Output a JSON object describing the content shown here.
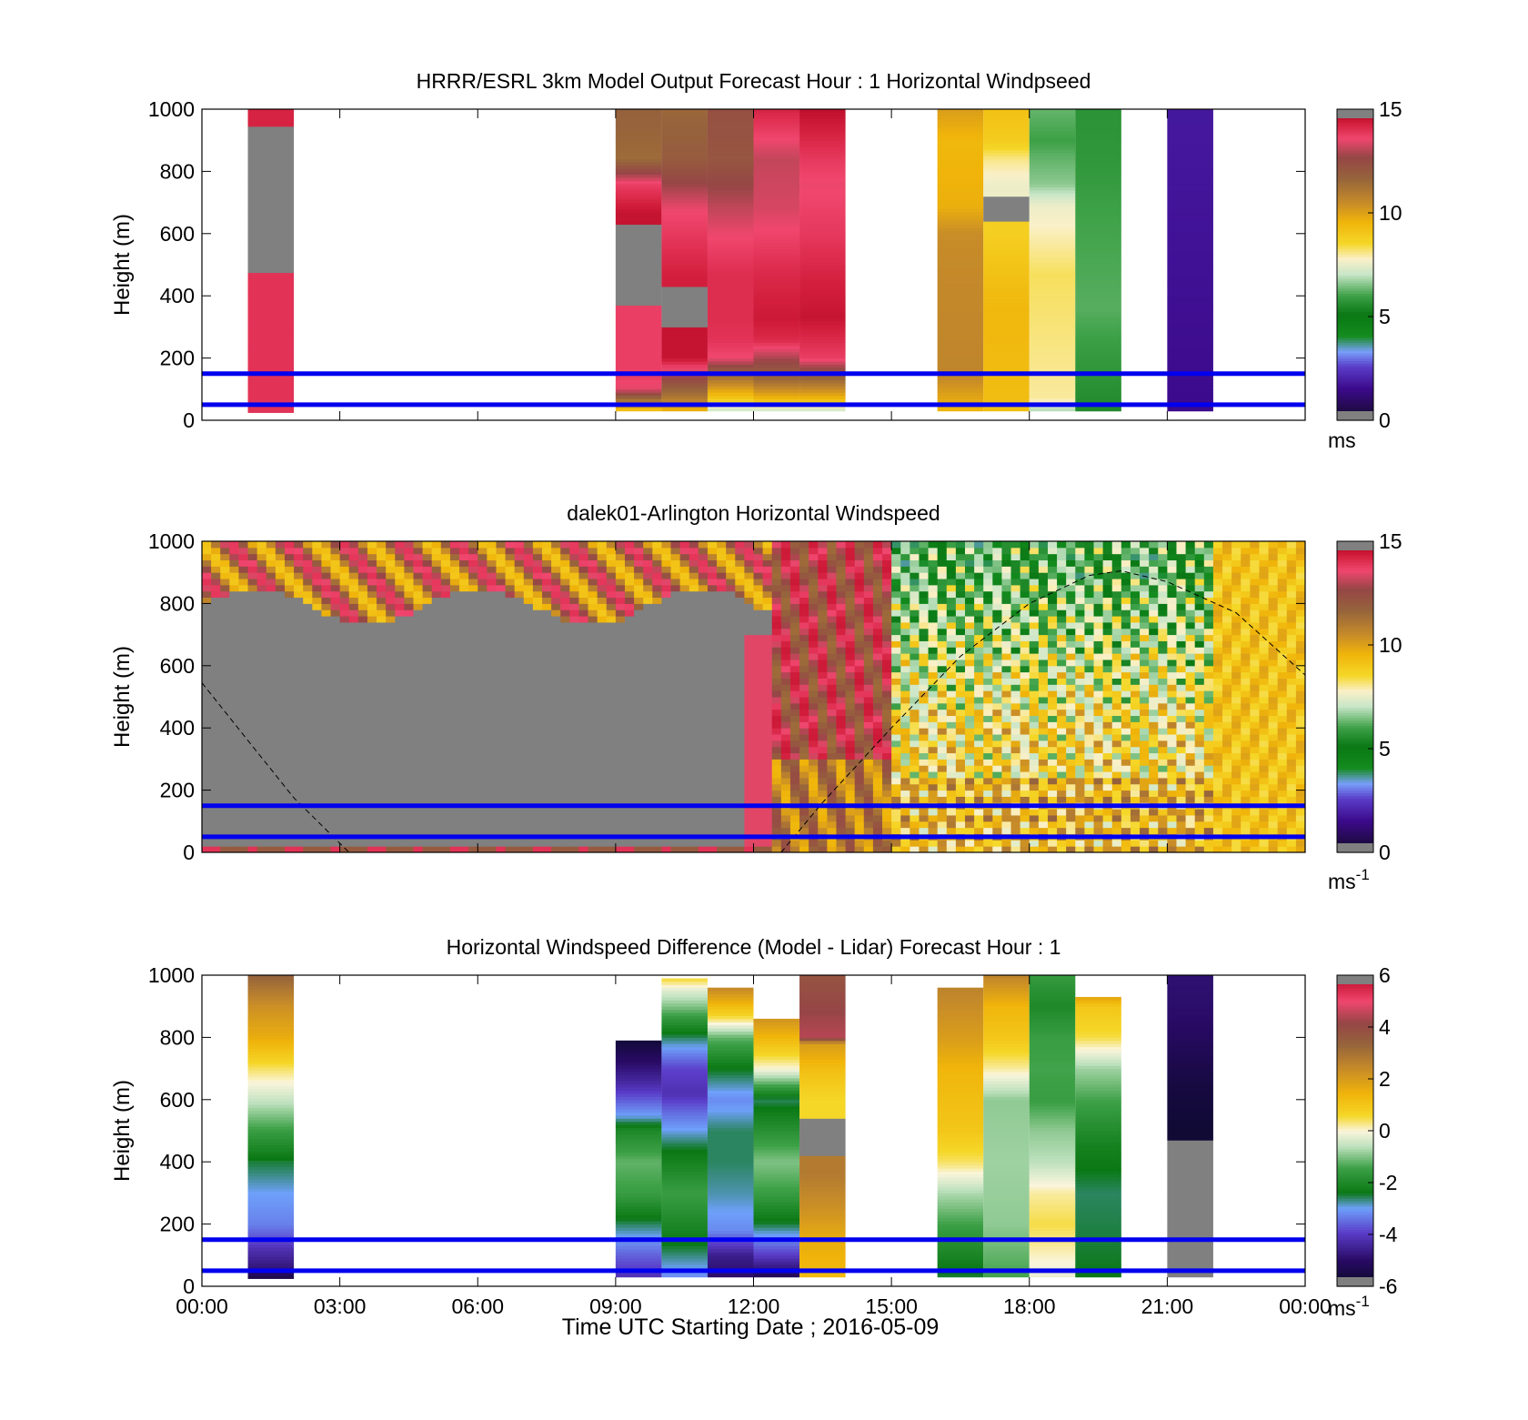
{
  "figure": {
    "xlabel": "Time UTC  Starting Date ; 2016-05-09",
    "x_ticks": [
      "00:00",
      "03:00",
      "06:00",
      "09:00",
      "12:00",
      "15:00",
      "18:00",
      "21:00",
      "00:00"
    ]
  },
  "chart_data": [
    {
      "type": "heatmap",
      "title": "HRRR/ESRL 3km Model Output   Forecast Hour : 1 Horizontal Windpseed",
      "xlabel": "",
      "ylabel": "Height (m)",
      "xlim": [
        0,
        24
      ],
      "ylim": [
        0,
        1000
      ],
      "y_ticks": [
        "0",
        "200",
        "400",
        "600",
        "800",
        "1000"
      ],
      "colorbar": {
        "ticks": [
          "0",
          "5",
          "10",
          "15"
        ],
        "range": [
          0,
          15
        ],
        "unit": "ms",
        "unit_sup": "",
        "colormap": "speed"
      },
      "reference_lines_height_m": [
        50,
        150
      ],
      "reference_line_color": "#0000ee",
      "missing_color": "#808080",
      "columns": [
        {
          "t0": 1.0,
          "t1": 2.0,
          "profile": [
            [
              25,
              14
            ],
            [
              45,
              14
            ],
            [
              900,
              null
            ],
            [
              1000,
              14.3
            ]
          ]
        },
        {
          "t0": 9.0,
          "t1": 10.0,
          "profile": [
            [
              30,
              9
            ],
            [
              70,
              11.5
            ],
            [
              100,
              13.5
            ],
            [
              140,
              13.8
            ],
            [
              600,
              null
            ],
            [
              670,
              14.6
            ],
            [
              760,
              13.8
            ],
            [
              840,
              11.5
            ],
            [
              1000,
              11.8
            ]
          ]
        },
        {
          "t0": 10.0,
          "t1": 11.0,
          "profile": [
            [
              30,
              9.5
            ],
            [
              70,
              11
            ],
            [
              130,
              12.5
            ],
            [
              200,
              14.6
            ],
            [
              400,
              null
            ],
            [
              460,
              14.4
            ],
            [
              600,
              13.9
            ],
            [
              680,
              13.6
            ],
            [
              840,
              12
            ],
            [
              1000,
              11.6
            ]
          ]
        },
        {
          "t0": 11.0,
          "t1": 12.0,
          "profile": [
            [
              30,
              7
            ],
            [
              70,
              9
            ],
            [
              130,
              11
            ],
            [
              200,
              13.6
            ],
            [
              260,
              14
            ],
            [
              330,
              14.1
            ],
            [
              470,
              14.1
            ],
            [
              600,
              13.6
            ],
            [
              680,
              13.2
            ],
            [
              840,
              12.2
            ],
            [
              1000,
              12.4
            ]
          ]
        },
        {
          "t0": 12.0,
          "t1": 13.0,
          "profile": [
            [
              30,
              7
            ],
            [
              70,
              9.5
            ],
            [
              130,
              11.5
            ],
            [
              260,
              14.2
            ],
            [
              330,
              14.5
            ],
            [
              470,
              14.2
            ],
            [
              680,
              13.4
            ],
            [
              840,
              13.2
            ],
            [
              1000,
              14.3
            ]
          ]
        },
        {
          "t0": 13.0,
          "t1": 14.0,
          "profile": [
            [
              30,
              7
            ],
            [
              70,
              9.5
            ],
            [
              130,
              11.5
            ],
            [
              200,
              13.8
            ],
            [
              330,
              14.6
            ],
            [
              470,
              14.3
            ],
            [
              600,
              13.9
            ],
            [
              760,
              13.6
            ],
            [
              840,
              13.9
            ],
            [
              1000,
              14.7
            ]
          ]
        },
        {
          "t0": 16.0,
          "t1": 17.0,
          "profile": [
            [
              30,
              9.5
            ],
            [
              150,
              10.7
            ],
            [
              460,
              10.6
            ],
            [
              600,
              10.5
            ],
            [
              690,
              9.7
            ],
            [
              900,
              9.5
            ],
            [
              1000,
              10.1
            ]
          ]
        },
        {
          "t0": 17.0,
          "t1": 18.0,
          "profile": [
            [
              30,
              9.3
            ],
            [
              360,
              9.5
            ],
            [
              470,
              9.2
            ],
            [
              600,
              8.8
            ],
            [
              690,
              null
            ],
            [
              760,
              7.6
            ],
            [
              840,
              8.1
            ],
            [
              900,
              8.9
            ],
            [
              1000,
              9.2
            ]
          ]
        },
        {
          "t0": 18.0,
          "t1": 19.0,
          "profile": [
            [
              30,
              6.8
            ],
            [
              70,
              8.0
            ],
            [
              470,
              8.3
            ],
            [
              690,
              7.6
            ],
            [
              760,
              6.6
            ],
            [
              840,
              6.3
            ],
            [
              900,
              6.0
            ],
            [
              1000,
              6.3
            ]
          ]
        },
        {
          "t0": 19.0,
          "t1": 20.0,
          "profile": [
            [
              30,
              5.5
            ],
            [
              360,
              6.2
            ],
            [
              690,
              6.0
            ],
            [
              840,
              5.8
            ],
            [
              1000,
              5.7
            ]
          ]
        },
        {
          "t0": 21.0,
          "t1": 22.0,
          "profile": [
            [
              30,
              1.5
            ],
            [
              1000,
              1.8
            ]
          ]
        }
      ]
    },
    {
      "type": "heatmap",
      "title": "dalek01-Arlington  Horizontal Windspeed",
      "xlabel": "",
      "ylabel": "Height (m)",
      "xlim": [
        0,
        24
      ],
      "ylim": [
        0,
        1000
      ],
      "y_ticks": [
        "0",
        "200",
        "400",
        "600",
        "800",
        "1000"
      ],
      "colorbar": {
        "ticks": [
          "0",
          "5",
          "10",
          "15"
        ],
        "range": [
          0,
          15
        ],
        "unit": "ms",
        "unit_sup": "-1",
        "colormap": "speed"
      },
      "reference_lines_height_m": [
        50,
        150
      ],
      "reference_line_color": "#0000ee",
      "missing_color": "#808080",
      "dashed_curve_color": "#000000",
      "dashed_curve_height_m": [
        [
          0.0,
          545
        ],
        [
          1.0,
          360
        ],
        [
          2.0,
          175
        ],
        [
          3.2,
          0
        ],
        [
          12.6,
          0
        ],
        [
          13.5,
          160
        ],
        [
          15.0,
          400
        ],
        [
          16.5,
          630
        ],
        [
          18.0,
          800
        ],
        [
          19.3,
          890
        ],
        [
          20.0,
          905
        ],
        [
          21.0,
          870
        ],
        [
          22.5,
          770
        ],
        [
          24.0,
          570
        ]
      ],
      "data_region": [
        {
          "t0": 0.0,
          "t1": 12.4,
          "speed": "mostly missing below aerosol top; 10-14 near 900-1000 m and near surface"
        },
        {
          "t0": 12.4,
          "t1": 15.0,
          "speed": "11-14 through column, lower 300 m ~11"
        },
        {
          "t0": 15.0,
          "t1": 24.0,
          "speed": "8-10 low levels, 5-7 aloft"
        }
      ]
    },
    {
      "type": "heatmap",
      "title": "Horizontal Windspeed Difference (Model - Lidar) Forecast Hour : 1",
      "xlabel": "Time UTC  Starting Date ; 2016-05-09",
      "ylabel": "Height (m)",
      "xlim": [
        0,
        24
      ],
      "ylim": [
        0,
        1000
      ],
      "y_ticks": [
        "0",
        "200",
        "400",
        "600",
        "800",
        "1000"
      ],
      "colorbar": {
        "ticks": [
          "-6",
          "-4",
          "-2",
          "0",
          "2",
          "4",
          "6"
        ],
        "range": [
          -6,
          6
        ],
        "unit": "ms",
        "unit_sup": "-1",
        "colormap": "diff"
      },
      "reference_lines_height_m": [
        50,
        150
      ],
      "reference_line_color": "#0000ee",
      "missing_color": "#808080",
      "columns": [
        {
          "t0": 1.0,
          "t1": 2.0,
          "profile": [
            [
              25,
              -5.5
            ],
            [
              60,
              -4.8
            ],
            [
              120,
              -4.2
            ],
            [
              150,
              -3.8
            ],
            [
              200,
              -3.3
            ],
            [
              300,
              -3.0
            ],
            [
              400,
              -2.5
            ],
            [
              500,
              -1.5
            ],
            [
              600,
              -0.5
            ],
            [
              700,
              0.4
            ],
            [
              800,
              1.6
            ],
            [
              900,
              2.3
            ],
            [
              1000,
              3.4
            ]
          ]
        },
        {
          "t0": 9.0,
          "t1": 10.0,
          "profile": [
            [
              30,
              -4.2
            ],
            [
              100,
              -3.6
            ],
            [
              200,
              -2.6
            ],
            [
              300,
              -1.5
            ],
            [
              400,
              -1.2
            ],
            [
              500,
              -2.0
            ],
            [
              550,
              -3.0
            ],
            [
              650,
              -4.3
            ],
            [
              750,
              -5.3
            ],
            [
              790,
              -5.7
            ]
          ]
        },
        {
          "t0": 10.0,
          "t1": 11.0,
          "profile": [
            [
              30,
              -3.2
            ],
            [
              150,
              -2.3
            ],
            [
              300,
              -1.5
            ],
            [
              450,
              -2.5
            ],
            [
              560,
              -3.5
            ],
            [
              620,
              -4.2
            ],
            [
              700,
              -3.9
            ],
            [
              800,
              -2.6
            ],
            [
              900,
              -1.0
            ],
            [
              950,
              -0.3
            ],
            [
              990,
              0.6
            ]
          ]
        },
        {
          "t0": 11.0,
          "t1": 12.0,
          "profile": [
            [
              30,
              -5.0
            ],
            [
              100,
              -4.6
            ],
            [
              180,
              -3.2
            ],
            [
              300,
              -2.8
            ],
            [
              400,
              -2.6
            ],
            [
              500,
              -2.6
            ],
            [
              600,
              -3.2
            ],
            [
              700,
              -2.4
            ],
            [
              800,
              -1.2
            ],
            [
              860,
              0.4
            ],
            [
              960,
              2.5
            ]
          ]
        },
        {
          "t0": 12.0,
          "t1": 13.0,
          "profile": [
            [
              30,
              -5.3
            ],
            [
              100,
              -4.0
            ],
            [
              200,
              -2.5
            ],
            [
              300,
              -1.5
            ],
            [
              400,
              -1.0
            ],
            [
              500,
              -1.8
            ],
            [
              600,
              -2.6
            ],
            [
              700,
              0.0
            ],
            [
              860,
              2.2
            ]
          ]
        },
        {
          "t0": 13.0,
          "t1": 14.0,
          "profile": [
            [
              30,
              1.3
            ],
            [
              150,
              1.6
            ],
            [
              250,
              2.3
            ],
            [
              360,
              2.8
            ],
            [
              490,
              null
            ],
            [
              600,
              0.6
            ],
            [
              700,
              1.2
            ],
            [
              780,
              2.0
            ],
            [
              800,
              4.5
            ],
            [
              1000,
              3.8
            ]
          ]
        },
        {
          "t0": 16.0,
          "t1": 17.0,
          "profile": [
            [
              30,
              -2.5
            ],
            [
              150,
              -1.8
            ],
            [
              300,
              -0.7
            ],
            [
              400,
              0.4
            ],
            [
              500,
              1.0
            ],
            [
              700,
              1.4
            ],
            [
              800,
              2.0
            ],
            [
              900,
              2.4
            ],
            [
              960,
              2.6
            ]
          ]
        },
        {
          "t0": 17.0,
          "t1": 18.0,
          "profile": [
            [
              30,
              -1.4
            ],
            [
              200,
              -0.9
            ],
            [
              400,
              -0.8
            ],
            [
              600,
              -0.9
            ],
            [
              700,
              0.2
            ],
            [
              800,
              1.0
            ],
            [
              900,
              1.4
            ],
            [
              1000,
              2.6
            ]
          ]
        },
        {
          "t0": 18.0,
          "t1": 19.0,
          "profile": [
            [
              30,
              -0.2
            ],
            [
              200,
              0.5
            ],
            [
              300,
              0.2
            ],
            [
              400,
              -0.6
            ],
            [
              500,
              -0.9
            ],
            [
              600,
              -1.5
            ],
            [
              700,
              -1.4
            ],
            [
              800,
              -1.5
            ],
            [
              900,
              -2.0
            ],
            [
              1000,
              -1.6
            ]
          ]
        },
        {
          "t0": 19.0,
          "t1": 20.0,
          "profile": [
            [
              30,
              -2.4
            ],
            [
              150,
              -2.5
            ],
            [
              300,
              -2.6
            ],
            [
              450,
              -2.2
            ],
            [
              600,
              -1.4
            ],
            [
              700,
              -0.8
            ],
            [
              800,
              0.5
            ],
            [
              900,
              1.0
            ],
            [
              930,
              1.8
            ]
          ]
        },
        {
          "t0": 21.0,
          "t1": 22.0,
          "profile": [
            [
              30,
              null
            ],
            [
              450,
              null
            ],
            [
              500,
              -5.8
            ],
            [
              650,
              -5.6
            ],
            [
              750,
              -5.3
            ],
            [
              860,
              -5.0
            ],
            [
              1000,
              -4.9
            ]
          ]
        }
      ]
    }
  ]
}
